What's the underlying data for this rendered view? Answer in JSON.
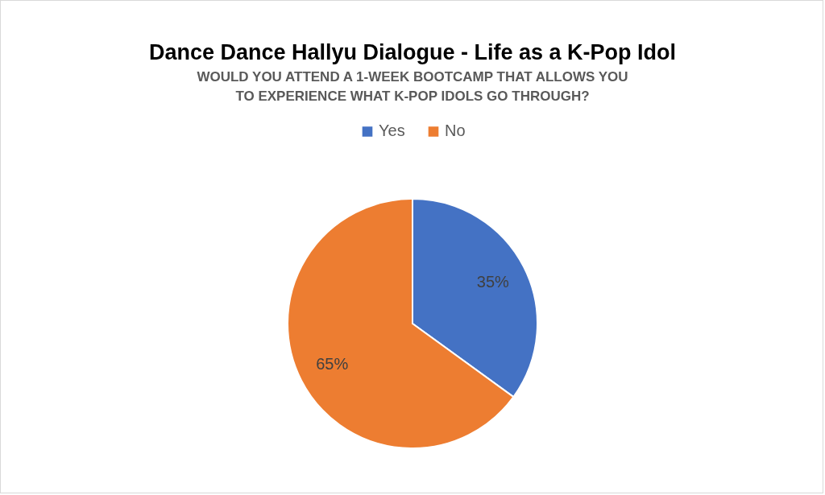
{
  "chart_data": {
    "type": "pie",
    "title": "Dance Dance Hallyu Dialogue - Life as a K-Pop Idol",
    "subtitle": "WOULD YOU ATTEND A 1-WEEK BOOTCAMP THAT ALLOWS YOU\nTO EXPERIENCE WHAT K-POP IDOLS GO THROUGH?",
    "categories": [
      "Yes",
      "No"
    ],
    "values": [
      35,
      65
    ],
    "colors": [
      "#4472c4",
      "#ed7d31"
    ],
    "value_labels": [
      "35%",
      "65%"
    ],
    "legend": "top"
  }
}
